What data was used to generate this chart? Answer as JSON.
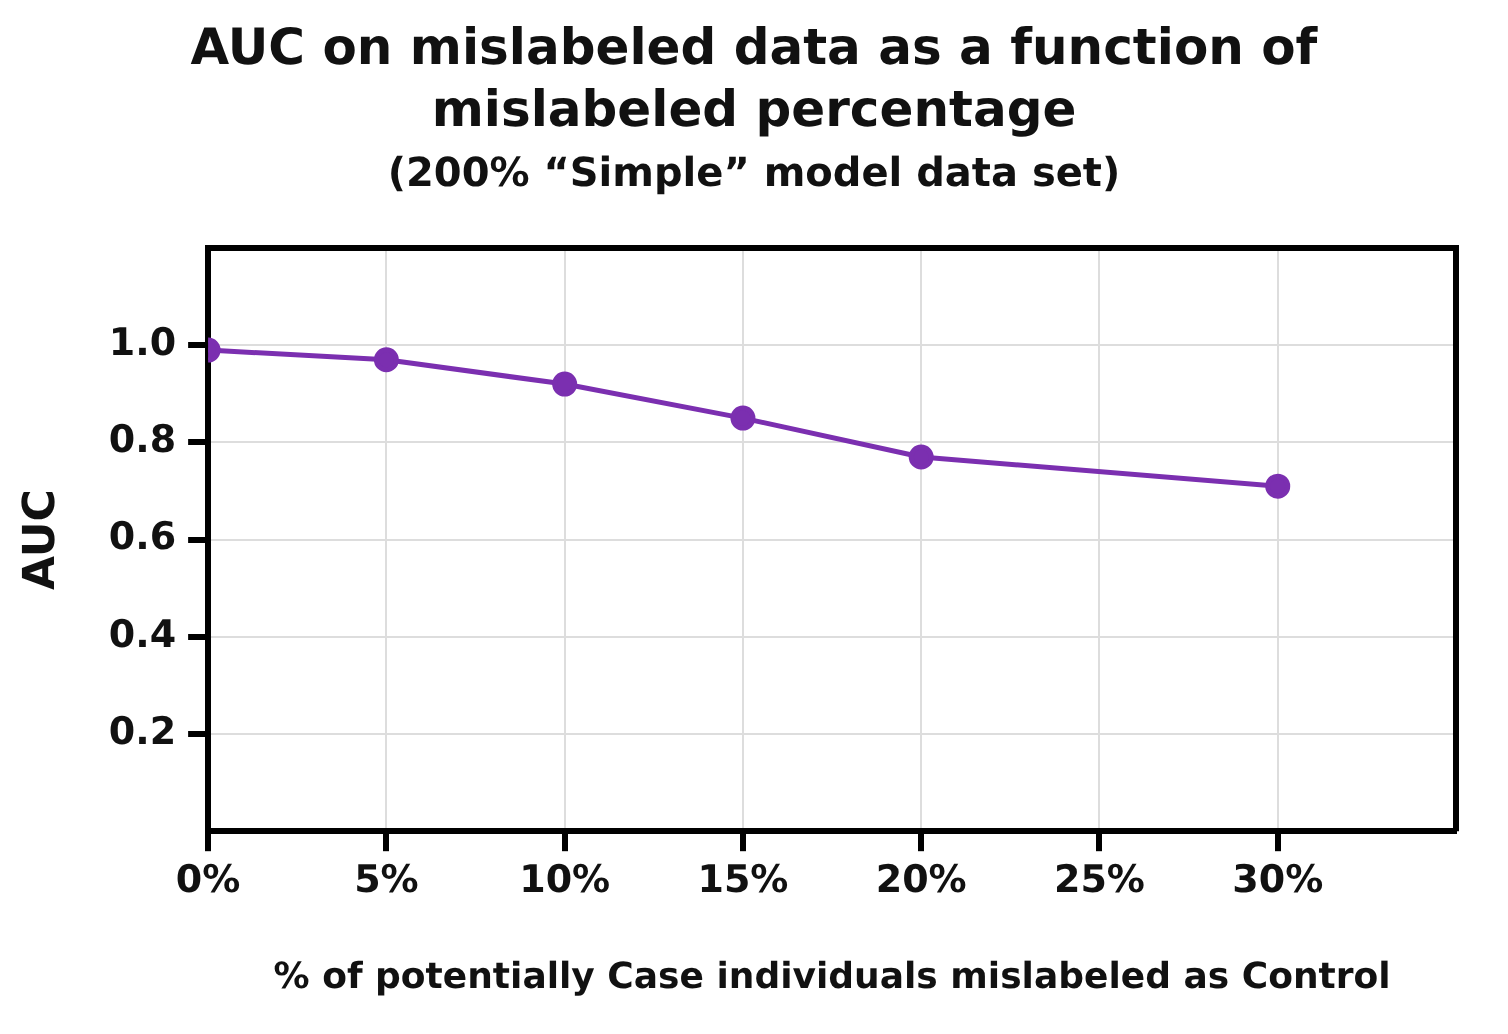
{
  "chart_data": {
    "type": "line",
    "title": "AUC on mislabeled data as a function of mislabeled percentage",
    "subtitle": "(200% “Simple” model data set)",
    "xlabel": "% of potentially Case individuals mislabeled as Control",
    "ylabel": "AUC",
    "x": [
      0,
      5,
      10,
      15,
      20,
      30
    ],
    "series": [
      {
        "color": "#7b2fb0",
        "values": [
          0.99,
          0.97,
          0.92,
          0.85,
          0.77,
          0.71
        ]
      }
    ],
    "xlim": [
      0,
      35
    ],
    "xticks": [
      {
        "value": 0,
        "label": "0%"
      },
      {
        "value": 5,
        "label": "5%"
      },
      {
        "value": 10,
        "label": "10%"
      },
      {
        "value": 15,
        "label": "15%"
      },
      {
        "value": 20,
        "label": "20%"
      },
      {
        "value": 25,
        "label": "25%"
      },
      {
        "value": 30,
        "label": "30%"
      }
    ],
    "ylim": [
      0,
      1.2
    ],
    "yticks": [
      0.2,
      0.4,
      0.6,
      0.8,
      {
        "value": 1,
        "label": "1.0"
      }
    ],
    "grid": true,
    "legend": false,
    "marker": "circle",
    "line_style": "solid"
  }
}
